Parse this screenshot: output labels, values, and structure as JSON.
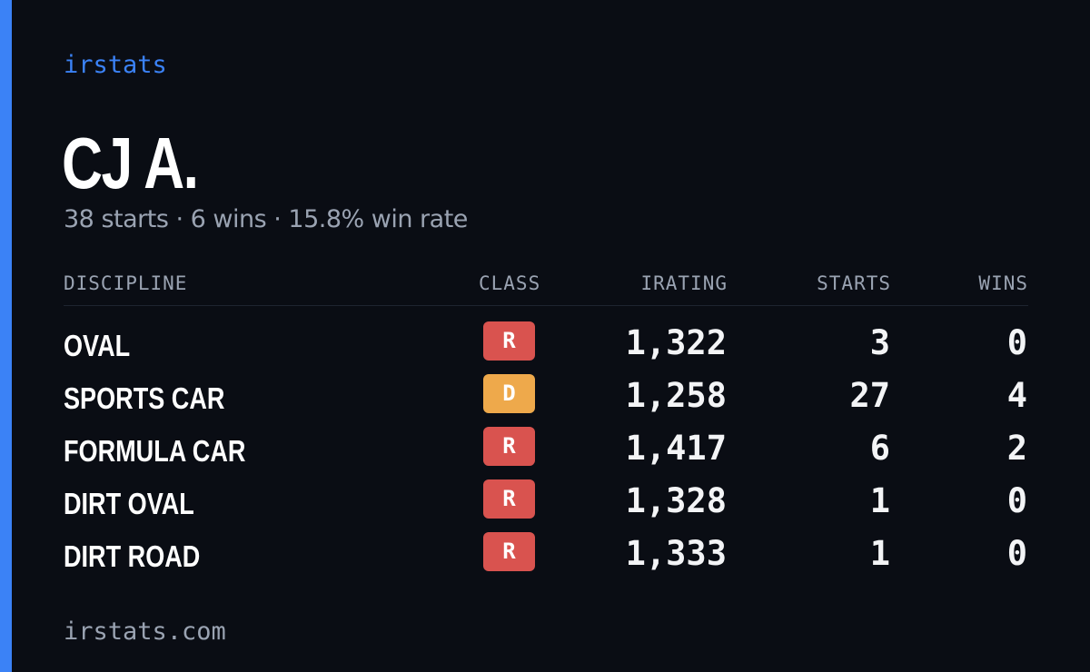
{
  "brand": "irstats",
  "player": {
    "name": "CJ A.",
    "summary": "38 starts · 6 wins · 15.8% win rate"
  },
  "table": {
    "headers": {
      "discipline": "DISCIPLINE",
      "class": "CLASS",
      "irating": "IRATING",
      "starts": "STARTS",
      "wins": "WINS"
    },
    "rows": [
      {
        "discipline": "OVAL",
        "class": "R",
        "class_color": "#d9534f",
        "irating": "1,322",
        "starts": "3",
        "wins": "0"
      },
      {
        "discipline": "SPORTS CAR",
        "class": "D",
        "class_color": "#eea94b",
        "irating": "1,258",
        "starts": "27",
        "wins": "4"
      },
      {
        "discipline": "FORMULA CAR",
        "class": "R",
        "class_color": "#d9534f",
        "irating": "1,417",
        "starts": "6",
        "wins": "2"
      },
      {
        "discipline": "DIRT OVAL",
        "class": "R",
        "class_color": "#d9534f",
        "irating": "1,328",
        "starts": "1",
        "wins": "0"
      },
      {
        "discipline": "DIRT ROAD",
        "class": "R",
        "class_color": "#d9534f",
        "irating": "1,333",
        "starts": "1",
        "wins": "0"
      }
    ]
  },
  "footer": "irstats.com",
  "colors": {
    "accent": "#3b82f6",
    "background": "#0a0d14",
    "class_r": "#d9534f",
    "class_d": "#eea94b"
  }
}
